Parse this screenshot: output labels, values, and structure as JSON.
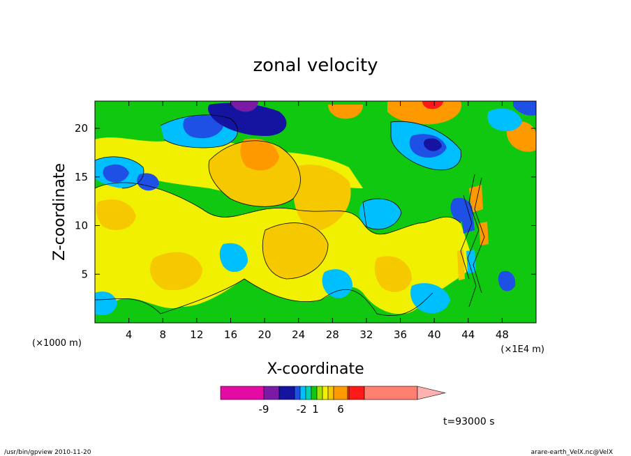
{
  "chart_data": {
    "type": "heatmap",
    "title": "zonal velocity",
    "xlabel": "X-coordinate",
    "ylabel": "Z-coordinate",
    "x_unit_left": "(×1000 m)",
    "x_unit_right": "(×1E4 m)",
    "xlim": [
      0,
      52
    ],
    "ylim": [
      0,
      22.8
    ],
    "x_ticks": [
      "4",
      "8",
      "12",
      "16",
      "20",
      "24",
      "28",
      "32",
      "36",
      "40",
      "44",
      "48"
    ],
    "y_ticks": [
      "5",
      "10",
      "15",
      "20"
    ],
    "colorbar": {
      "colors": [
        "#e60aa5",
        "#7a1aa5",
        "#1414a0",
        "#1e50e6",
        "#00bfff",
        "#00d2b4",
        "#11c811",
        "#a6e000",
        "#f0f000",
        "#f5c800",
        "#ff9900",
        "#ff5a00",
        "#ff1a1a",
        "#ff7f70",
        "#ffb0b0"
      ],
      "labels": [
        "-9",
        "-2",
        "1",
        "6"
      ]
    },
    "time_label": "t=93000 s",
    "notes": {
      "description": "Zonal velocity field: mostly weak positive values (1 to 6) below 15 km, strong negative cores (-9) near the top between x=12-26 and x=40, positive cores (6+) near x=36-40 top; oscillating band near x=43-46."
    }
  },
  "footer": {
    "left": "/usr/bin/gpview  2010-11-20",
    "right": "arare-earth_VelX.nc@VelX"
  }
}
